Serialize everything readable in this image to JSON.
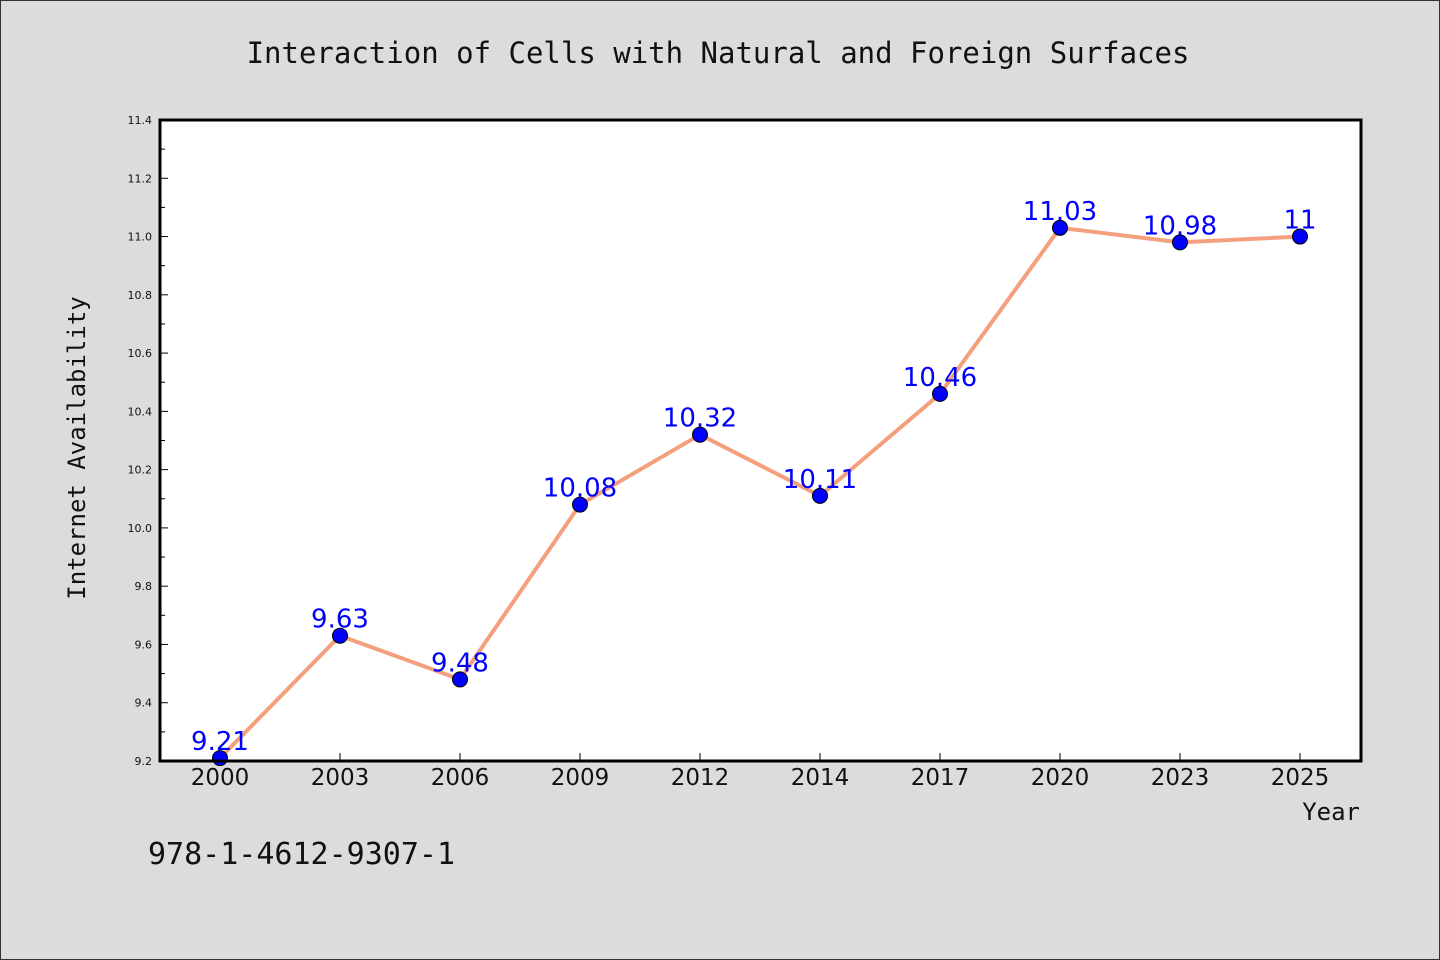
{
  "chart_data": {
    "type": "line",
    "title": "Interaction of Cells with Natural and Foreign Surfaces",
    "xlabel": "Year",
    "ylabel": "Internet Availability",
    "categories": [
      "2000",
      "2003",
      "2006",
      "2009",
      "2012",
      "2014",
      "2017",
      "2020",
      "2023",
      "2025"
    ],
    "values": [
      9.21,
      9.63,
      9.48,
      10.08,
      10.32,
      10.11,
      10.46,
      11.03,
      10.98,
      11
    ],
    "data_labels": [
      "9.21",
      "9.63",
      "9.48",
      "10.08",
      "10.32",
      "10.11",
      "10.46",
      "11.03",
      "10.98",
      "11"
    ],
    "ylim": [
      9.2,
      11.4
    ],
    "yticks": [
      "9.2",
      "9.4",
      "9.6",
      "9.8",
      "10.0",
      "10.2",
      "10.4",
      "10.6",
      "10.8",
      "11.0",
      "11.2",
      "11.4"
    ],
    "grid": false,
    "line_color": "#f4a07e",
    "marker_color": "#0000ff",
    "label_color": "#0000ff"
  },
  "footer": {
    "isbn": "978-1-4612-9307-1"
  }
}
